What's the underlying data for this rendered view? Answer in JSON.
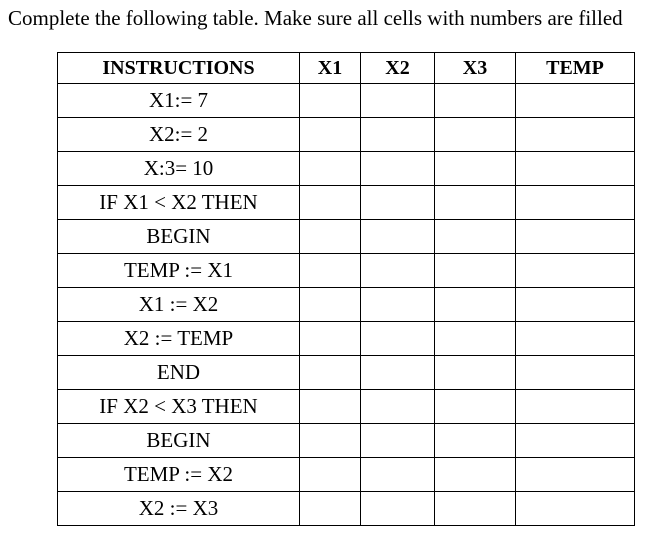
{
  "prompt": "Complete the following table. Make sure all cells with numbers are filled",
  "table": {
    "headers": [
      "INSTRUCTIONS",
      "X1",
      "X2",
      "X3",
      "TEMP"
    ],
    "rows": [
      {
        "instruction": "X1:= 7",
        "x1": "",
        "x2": "",
        "x3": "",
        "temp": ""
      },
      {
        "instruction": "X2:= 2",
        "x1": "",
        "x2": "",
        "x3": "",
        "temp": ""
      },
      {
        "instruction": "X:3= 10",
        "x1": "",
        "x2": "",
        "x3": "",
        "temp": ""
      },
      {
        "instruction": "IF X1 < X2 THEN",
        "x1": "",
        "x2": "",
        "x3": "",
        "temp": ""
      },
      {
        "instruction": "BEGIN",
        "x1": "",
        "x2": "",
        "x3": "",
        "temp": ""
      },
      {
        "instruction": "TEMP := X1",
        "x1": "",
        "x2": "",
        "x3": "",
        "temp": ""
      },
      {
        "instruction": "X1 := X2",
        "x1": "",
        "x2": "",
        "x3": "",
        "temp": ""
      },
      {
        "instruction": "X2 := TEMP",
        "x1": "",
        "x2": "",
        "x3": "",
        "temp": ""
      },
      {
        "instruction": "END",
        "x1": "",
        "x2": "",
        "x3": "",
        "temp": ""
      },
      {
        "instruction": "IF X2 < X3 THEN",
        "x1": "",
        "x2": "",
        "x3": "",
        "temp": ""
      },
      {
        "instruction": "BEGIN",
        "x1": "",
        "x2": "",
        "x3": "",
        "temp": ""
      },
      {
        "instruction": "TEMP := X2",
        "x1": "",
        "x2": "",
        "x3": "",
        "temp": ""
      },
      {
        "instruction": "X2 := X3",
        "x1": "",
        "x2": "",
        "x3": "",
        "temp": ""
      }
    ]
  }
}
